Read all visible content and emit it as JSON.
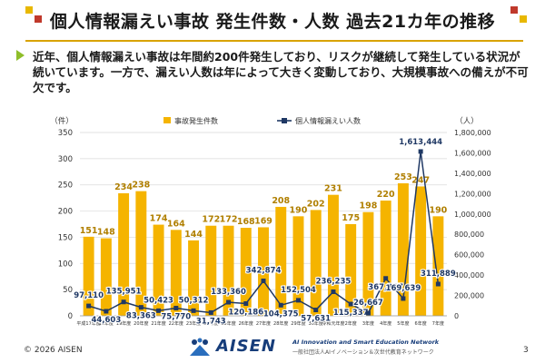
{
  "page": {
    "title": "個人情報漏えい事故 発生件数・人数 過去21カ年の推移",
    "intro": "近年、個人情報漏えい事故は年間約200件発生しており、リスクが継続して発生している状況が続いています。一方で、漏えい人数は年によって大きく変動しており、大規模事故への備えが不可欠です。",
    "footer_copyright": "© 2026 AISEN",
    "page_number": "3",
    "logo_text": "AISEN",
    "tagline": "AI Innovation and Smart Education Network",
    "tagline_jp": "一般社団法人AIイノベーション＆次世代教育ネットワーク"
  },
  "colors": {
    "bar": "#f5b400",
    "line": "#1f3864",
    "grid": "#d9d9d9",
    "accent": "#d9a300"
  },
  "chart_data": {
    "type": "bar",
    "categories": [
      "平成17年度",
      "18年度",
      "19年度",
      "20年度",
      "21年度",
      "22年度",
      "23年度",
      "24年度",
      "25年度",
      "26年度",
      "27年度",
      "28年度",
      "29年度",
      "30年度",
      "令和元年度",
      "2年度",
      "3年度",
      "4年度",
      "5年度",
      "6年度",
      "7年度"
    ],
    "series": [
      {
        "name": "事故発生件数",
        "type": "bar",
        "axis": "left",
        "values": [
          151,
          148,
          234,
          238,
          174,
          164,
          144,
          172,
          172,
          168,
          169,
          208,
          190,
          202,
          231,
          175,
          198,
          220,
          253,
          247,
          190
        ]
      },
      {
        "name": "個人情報漏えい人数",
        "type": "line",
        "axis": "right",
        "values": [
          97110,
          44603,
          135951,
          83363,
          50423,
          75770,
          50312,
          31743,
          133360,
          120186,
          342874,
          104375,
          152504,
          57631,
          236235,
          115337,
          26667,
          367337,
          169639,
          1613444,
          311889
        ]
      }
    ],
    "left_axis": {
      "unit": "（件）",
      "ylim": [
        0,
        350
      ],
      "ticks": [
        "0",
        "50",
        "100",
        "150",
        "200",
        "250",
        "300",
        "350"
      ]
    },
    "right_axis": {
      "unit": "（人）",
      "ylim": [
        0,
        1800000
      ],
      "ticks": [
        "0",
        "200,000",
        "400,000",
        "600,000",
        "800,000",
        "1,000,000",
        "1,200,000",
        "1,400,000",
        "1,600,000",
        "1,800,000"
      ]
    },
    "bar_labels": [
      "151",
      "148",
      "234",
      "238",
      "174",
      "164",
      "144",
      "172",
      "172",
      "168",
      "169",
      "208",
      "190",
      "202",
      "231",
      "175",
      "198",
      "220",
      "253",
      "247",
      "190"
    ],
    "line_labels": [
      "97,110",
      "44,603",
      "135,951",
      "83,363",
      "50,423",
      "75,770",
      "50,312",
      "31,743",
      "133,360",
      "120,186",
      "342,874",
      "104,375",
      "152,504",
      "57,631",
      "236,235",
      "115,337",
      "26,667",
      "367,337",
      "169,639",
      "1,613,444",
      "311,889"
    ],
    "legend": {
      "bar": "事故発生件数",
      "line": "個人情報漏えい人数",
      "position": "top"
    },
    "grid": true
  }
}
